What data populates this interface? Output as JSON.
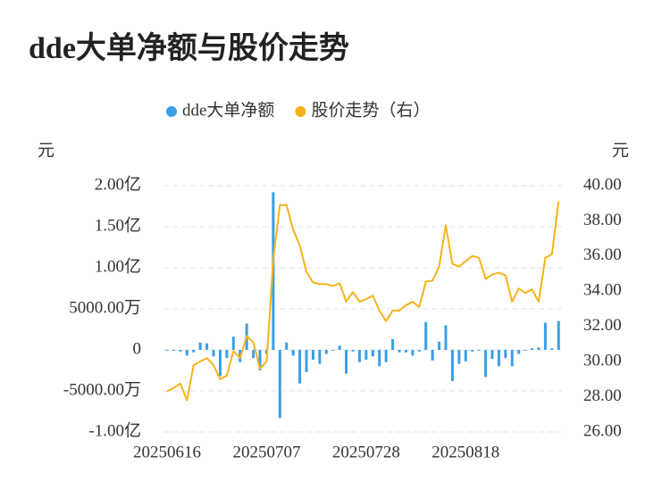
{
  "chart_data": {
    "type": "bar-line",
    "title": "dde大单净额与股价走势",
    "ylabel": "元",
    "y2label": "元",
    "categories": [
      "20250616",
      null,
      null,
      null,
      null,
      null,
      null,
      null,
      null,
      null,
      null,
      null,
      null,
      null,
      null,
      "20250707",
      null,
      null,
      null,
      null,
      null,
      null,
      null,
      null,
      null,
      null,
      null,
      null,
      null,
      null,
      "20250728",
      null,
      null,
      null,
      null,
      null,
      null,
      null,
      null,
      null,
      null,
      null,
      null,
      null,
      null,
      "20250818",
      null,
      null,
      null,
      null,
      null,
      null,
      null,
      null,
      null,
      null,
      null,
      null,
      null,
      null
    ],
    "ylim": [
      -1,
      2
    ],
    "yticks": [
      {
        "value": -1,
        "label": "-1.00亿"
      },
      {
        "value": -0.5,
        "label": "-5000.00万"
      },
      0,
      {
        "value": 0.5,
        "label": "5000.00万"
      },
      {
        "value": 1,
        "label": "1.00亿"
      },
      {
        "value": 1.5,
        "label": "1.50亿"
      },
      {
        "value": 2,
        "label": "2.00亿"
      }
    ],
    "y2lim": [
      26,
      40
    ],
    "y2ticks": [
      {
        "value": 26,
        "label": "26.00"
      },
      {
        "value": 28,
        "label": "28.00"
      },
      {
        "value": 30,
        "label": "30.00"
      },
      {
        "value": 32,
        "label": "32.00"
      },
      {
        "value": 34,
        "label": "34.00"
      },
      {
        "value": 36,
        "label": "36.00"
      },
      {
        "value": 38,
        "label": "38.00"
      },
      {
        "value": 40,
        "label": "40.00"
      }
    ],
    "grid": true,
    "series": [
      {
        "name": "dde大单净额",
        "type": "bar",
        "color": "#3a9fe6",
        "values": [
          -0.01,
          -0.01,
          -0.02,
          -0.07,
          -0.03,
          0.09,
          0.08,
          -0.08,
          -0.32,
          -0.1,
          0.16,
          -0.15,
          0.32,
          -0.1,
          -0.25,
          -0.05,
          1.92,
          -0.83,
          0.09,
          -0.07,
          -0.41,
          -0.27,
          -0.12,
          -0.17,
          -0.05,
          -0.01,
          0.05,
          -0.29,
          -0.02,
          -0.15,
          -0.12,
          -0.08,
          -0.2,
          -0.15,
          0.13,
          -0.03,
          -0.03,
          -0.07,
          -0.02,
          0.34,
          -0.13,
          0.1,
          0.3,
          -0.38,
          -0.17,
          -0.14,
          -0.02,
          -0.01,
          -0.33,
          -0.11,
          -0.2,
          -0.1,
          -0.2,
          -0.05,
          -0.01,
          0.02,
          0.03,
          0.33,
          0.02,
          0.35
        ]
      },
      {
        "name": "股价走势（右）",
        "type": "line",
        "axis": "y2",
        "color": "#f5b31b",
        "values": [
          28.3,
          28.5,
          28.75,
          27.8,
          29.8,
          30.0,
          30.2,
          29.8,
          29.0,
          29.2,
          30.6,
          30.2,
          31.45,
          31.1,
          29.6,
          30.0,
          35.8,
          38.9,
          38.9,
          37.5,
          36.6,
          35.1,
          34.5,
          34.4,
          34.4,
          34.3,
          34.45,
          33.4,
          33.95,
          33.4,
          33.55,
          33.75,
          32.9,
          32.3,
          32.9,
          32.9,
          33.2,
          33.4,
          33.1,
          34.55,
          34.6,
          35.4,
          37.75,
          35.55,
          35.4,
          35.7,
          36.0,
          35.9,
          34.7,
          34.95,
          35.05,
          34.9,
          33.4,
          34.15,
          33.9,
          34.1,
          33.4,
          35.9,
          36.1,
          39.1
        ]
      }
    ]
  }
}
